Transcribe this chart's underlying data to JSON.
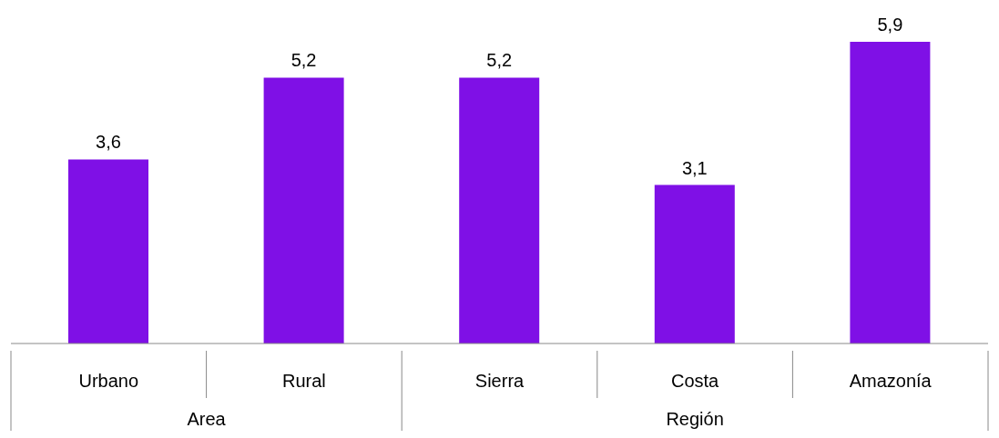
{
  "chart_data": {
    "type": "bar",
    "categories": [
      "Urbano",
      "Rural",
      "Sierra",
      "Costa",
      "Amazonía"
    ],
    "values": [
      3.6,
      5.2,
      5.2,
      3.1,
      5.9
    ],
    "color": "#7f10e6",
    "value_labels": [
      "3,6",
      "5,2",
      "5,2",
      "3,1",
      "5,9"
    ],
    "annotations": [
      "Area",
      "Región"
    ]
  }
}
